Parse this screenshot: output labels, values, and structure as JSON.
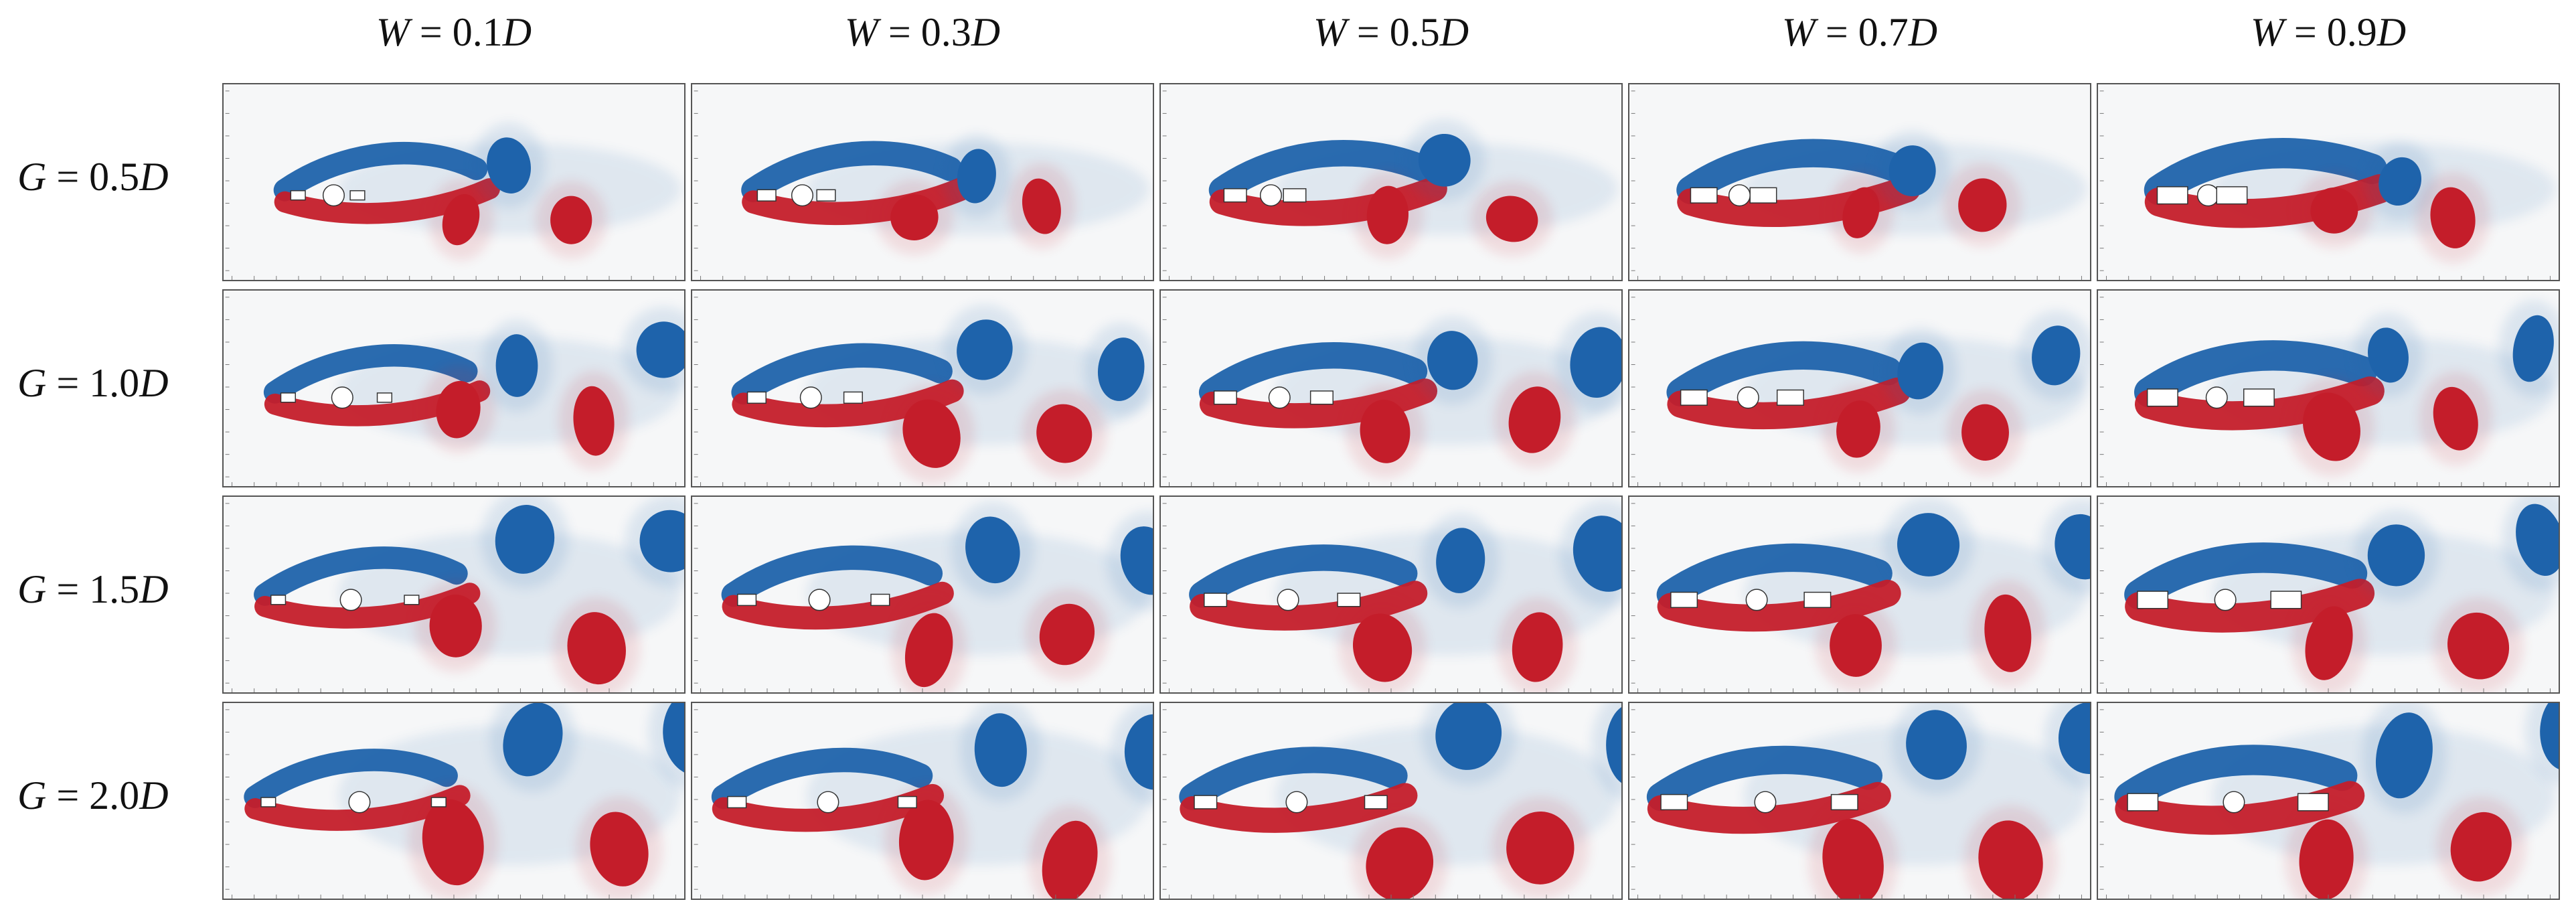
{
  "columns": [
    {
      "var": "W",
      "rest": " = 0.1",
      "unit": "D"
    },
    {
      "var": "W",
      "rest": " = 0.3",
      "unit": "D"
    },
    {
      "var": "W",
      "rest": " = 0.5",
      "unit": "D"
    },
    {
      "var": "W",
      "rest": " = 0.7",
      "unit": "D"
    },
    {
      "var": "W",
      "rest": " = 0.9",
      "unit": "D"
    }
  ],
  "rows": [
    {
      "var": "G",
      "rest": " = 0.5",
      "unit": "D"
    },
    {
      "var": "G",
      "rest": " = 1.0",
      "unit": "D"
    },
    {
      "var": "G",
      "rest": " = 1.5",
      "unit": "D"
    },
    {
      "var": "G",
      "rest": " = 2.0",
      "unit": "D"
    }
  ],
  "colors": {
    "positive_vorticity": "#c41e2a",
    "negative_vorticity": "#1f63ab",
    "background": "#f6f7f8",
    "body": "#ffffff"
  }
}
